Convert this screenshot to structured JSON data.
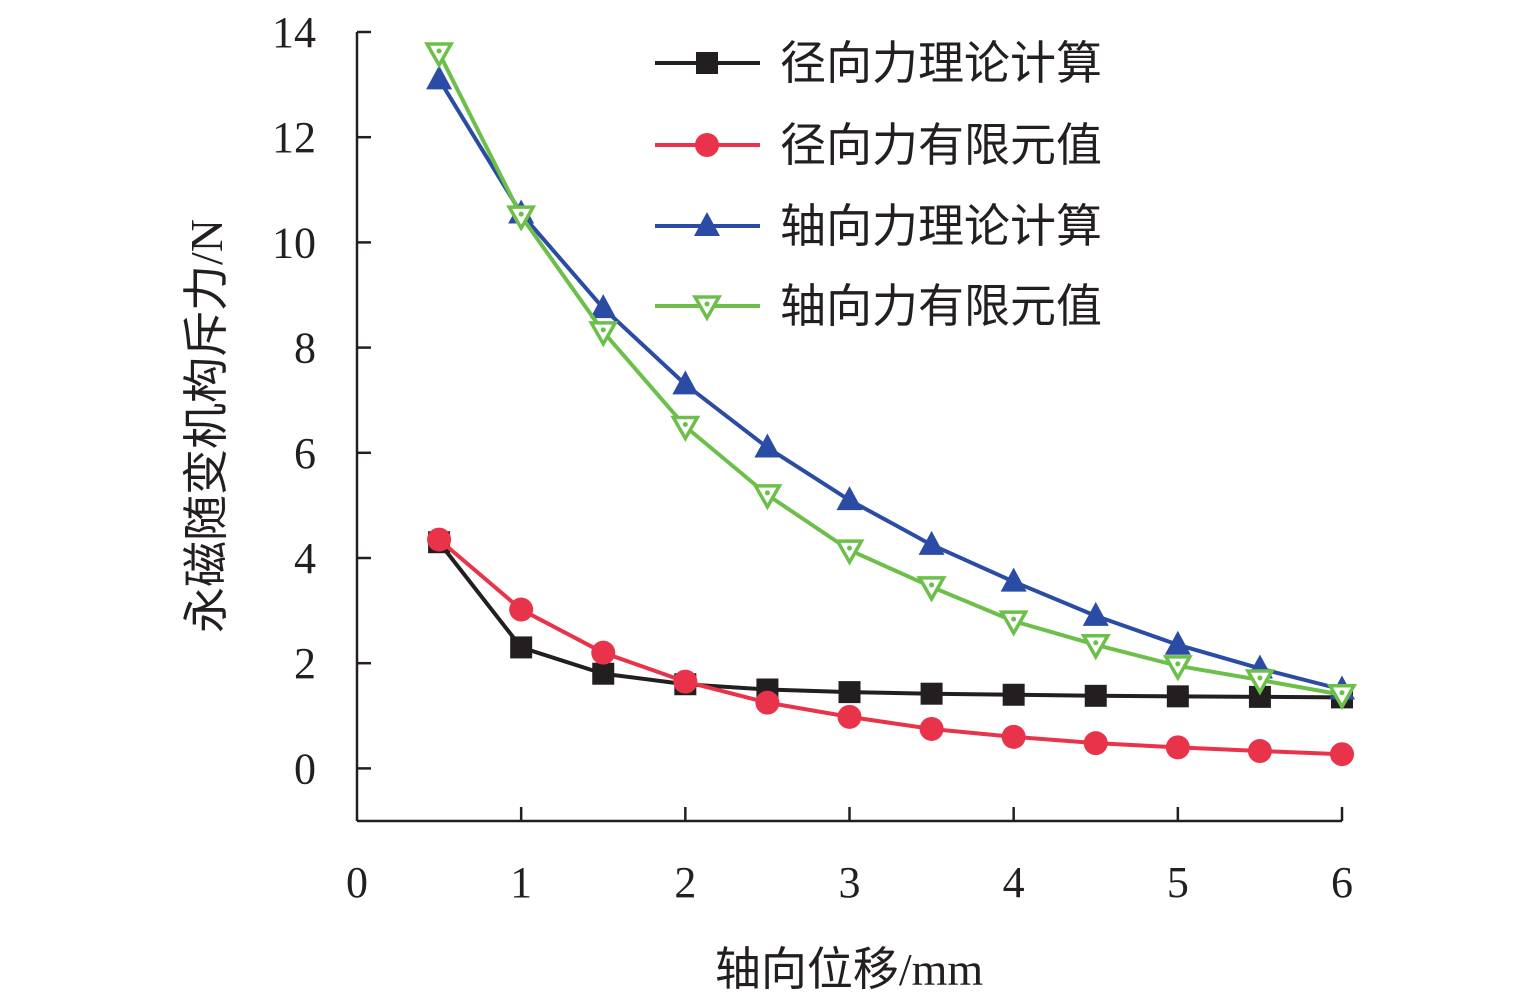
{
  "chart_data": {
    "type": "line",
    "xlabel": "轴向位移/mm",
    "ylabel": "永磁随变机构斥力/N",
    "xlim": [
      0,
      6
    ],
    "ylim": [
      -1,
      14
    ],
    "xticks": [
      "0",
      "1",
      "2",
      "3",
      "4",
      "5",
      "6"
    ],
    "yticks": [
      "0",
      "2",
      "4",
      "6",
      "8",
      "10",
      "12",
      "14"
    ],
    "grid": false,
    "legend_position": "top-right",
    "x": [
      0.5,
      1.0,
      1.5,
      2.0,
      2.5,
      3.0,
      3.5,
      4.0,
      4.5,
      5.0,
      5.5,
      6.0
    ],
    "series": [
      {
        "name": "径向力理论计算",
        "color": "#231f20",
        "marker": "square",
        "values": [
          4.3,
          2.3,
          1.8,
          1.6,
          1.5,
          1.45,
          1.42,
          1.4,
          1.38,
          1.37,
          1.36,
          1.35
        ]
      },
      {
        "name": "径向力有限元值",
        "color": "#e8334a",
        "marker": "circle",
        "values": [
          4.35,
          3.02,
          2.2,
          1.65,
          1.25,
          0.98,
          0.75,
          0.6,
          0.48,
          0.4,
          0.33,
          0.27
        ]
      },
      {
        "name": "轴向力理论计算",
        "color": "#2b4ca5",
        "marker": "triangle-up",
        "values": [
          13.1,
          10.55,
          8.75,
          7.3,
          6.1,
          5.1,
          4.25,
          3.55,
          2.9,
          2.35,
          1.9,
          1.5
        ]
      },
      {
        "name": "轴向力有限元值",
        "color": "#6cc04a",
        "marker": "triangle-down-open",
        "values": [
          13.6,
          10.5,
          8.3,
          6.5,
          5.2,
          4.15,
          3.45,
          2.8,
          2.35,
          1.95,
          1.68,
          1.4
        ]
      }
    ]
  }
}
